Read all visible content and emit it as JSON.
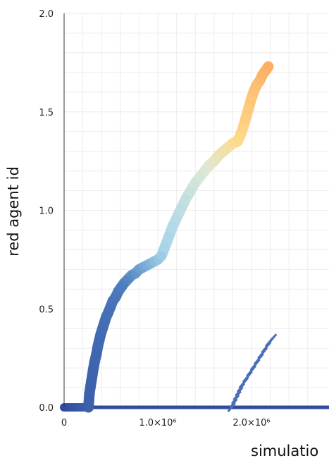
{
  "chart_data": {
    "type": "scatter",
    "title": "",
    "xlabel": "simulatio",
    "ylabel": "red agent id",
    "xlim": [
      0,
      2400000
    ],
    "ylim": [
      0,
      2.0
    ],
    "grid": true,
    "x_tick_labels": [
      "0",
      "1.0×10⁶",
      "2.0×10⁶"
    ],
    "x_tick_values": [
      0,
      1000000,
      2000000
    ],
    "y_tick_labels": [
      "0.0",
      "0.5",
      "1.0",
      "1.5",
      "2.0"
    ],
    "y_tick_values": [
      0,
      0.5,
      1.0,
      1.5,
      2.0
    ],
    "colors": {
      "axis": "#333333",
      "grid": "#ececec",
      "dark_blue": "#2f4b9c",
      "mid_blue": "#4f7fc0",
      "light_blue": "#a8d6ea",
      "pale": "#dfe8d6",
      "yellow": "#fedb8b",
      "orange": "#fdae61"
    },
    "series": [
      {
        "points": [
          {
            "x": 0,
            "y": 0.0
          },
          {
            "x": 20000,
            "y": 0.0
          },
          {
            "x": 40000,
            "y": 0.0
          },
          {
            "x": 60000,
            "y": 0.0
          },
          {
            "x": 80000,
            "y": 0.0
          },
          {
            "x": 100000,
            "y": 0.0
          },
          {
            "x": 120000,
            "y": 0.0
          },
          {
            "x": 140000,
            "y": 0.0
          },
          {
            "x": 160000,
            "y": 0.0
          },
          {
            "x": 180000,
            "y": 0.0
          },
          {
            "x": 200000,
            "y": 0.0
          },
          {
            "x": 220000,
            "y": 0.0
          },
          {
            "x": 240000,
            "y": 0.0
          },
          {
            "x": 260000,
            "y": 0.0
          },
          {
            "x": 270000,
            "y": 0.07
          },
          {
            "x": 290000,
            "y": 0.13
          },
          {
            "x": 310000,
            "y": 0.19
          },
          {
            "x": 325000,
            "y": 0.23
          },
          {
            "x": 345000,
            "y": 0.27
          },
          {
            "x": 360000,
            "y": 0.31
          },
          {
            "x": 375000,
            "y": 0.34
          },
          {
            "x": 390000,
            "y": 0.37
          },
          {
            "x": 410000,
            "y": 0.4
          },
          {
            "x": 430000,
            "y": 0.43
          },
          {
            "x": 450000,
            "y": 0.46
          },
          {
            "x": 470000,
            "y": 0.48
          },
          {
            "x": 495000,
            "y": 0.51
          },
          {
            "x": 520000,
            "y": 0.54
          },
          {
            "x": 550000,
            "y": 0.56
          },
          {
            "x": 580000,
            "y": 0.59
          },
          {
            "x": 610000,
            "y": 0.61
          },
          {
            "x": 640000,
            "y": 0.63
          },
          {
            "x": 680000,
            "y": 0.65
          },
          {
            "x": 720000,
            "y": 0.67
          },
          {
            "x": 760000,
            "y": 0.68
          },
          {
            "x": 800000,
            "y": 0.7
          },
          {
            "x": 840000,
            "y": 0.71
          },
          {
            "x": 880000,
            "y": 0.72
          },
          {
            "x": 920000,
            "y": 0.73
          },
          {
            "x": 960000,
            "y": 0.74
          },
          {
            "x": 1000000,
            "y": 0.75
          },
          {
            "x": 1040000,
            "y": 0.77
          },
          {
            "x": 1080000,
            "y": 0.82
          },
          {
            "x": 1120000,
            "y": 0.87
          },
          {
            "x": 1160000,
            "y": 0.92
          },
          {
            "x": 1200000,
            "y": 0.96
          },
          {
            "x": 1250000,
            "y": 1.01
          },
          {
            "x": 1300000,
            "y": 1.06
          },
          {
            "x": 1350000,
            "y": 1.1
          },
          {
            "x": 1400000,
            "y": 1.14
          },
          {
            "x": 1450000,
            "y": 1.17
          },
          {
            "x": 1500000,
            "y": 1.2
          },
          {
            "x": 1550000,
            "y": 1.23
          },
          {
            "x": 1600000,
            "y": 1.25
          },
          {
            "x": 1650000,
            "y": 1.28
          },
          {
            "x": 1700000,
            "y": 1.3
          },
          {
            "x": 1750000,
            "y": 1.32
          },
          {
            "x": 1800000,
            "y": 1.34
          },
          {
            "x": 1850000,
            "y": 1.35
          },
          {
            "x": 1880000,
            "y": 1.38
          },
          {
            "x": 1910000,
            "y": 1.42
          },
          {
            "x": 1940000,
            "y": 1.47
          },
          {
            "x": 1970000,
            "y": 1.52
          },
          {
            "x": 2000000,
            "y": 1.57
          },
          {
            "x": 2030000,
            "y": 1.61
          },
          {
            "x": 2060000,
            "y": 1.64
          },
          {
            "x": 2090000,
            "y": 1.66
          },
          {
            "x": 2120000,
            "y": 1.69
          },
          {
            "x": 2150000,
            "y": 1.71
          },
          {
            "x": 2180000,
            "y": 1.73
          }
        ]
      },
      {
        "points": [
          {
            "x": 1780000,
            "y": 0.0
          },
          {
            "x": 1800000,
            "y": 0.02
          },
          {
            "x": 1820000,
            "y": 0.04
          },
          {
            "x": 1840000,
            "y": 0.06
          },
          {
            "x": 1860000,
            "y": 0.08
          },
          {
            "x": 1880000,
            "y": 0.1
          },
          {
            "x": 1900000,
            "y": 0.12
          },
          {
            "x": 1920000,
            "y": 0.13
          },
          {
            "x": 1940000,
            "y": 0.15
          },
          {
            "x": 1960000,
            "y": 0.16
          },
          {
            "x": 1980000,
            "y": 0.18
          },
          {
            "x": 2000000,
            "y": 0.19
          },
          {
            "x": 2020000,
            "y": 0.21
          },
          {
            "x": 2040000,
            "y": 0.22
          },
          {
            "x": 2060000,
            "y": 0.24
          },
          {
            "x": 2080000,
            "y": 0.25
          },
          {
            "x": 2100000,
            "y": 0.27
          },
          {
            "x": 2120000,
            "y": 0.28
          },
          {
            "x": 2140000,
            "y": 0.3
          },
          {
            "x": 2160000,
            "y": 0.31
          },
          {
            "x": 2180000,
            "y": 0.33
          },
          {
            "x": 2200000,
            "y": 0.34
          },
          {
            "x": 2220000,
            "y": 0.35
          }
        ]
      }
    ],
    "baseline": {
      "y": 0.0,
      "x_start": 0,
      "x_end": 2400000
    }
  }
}
